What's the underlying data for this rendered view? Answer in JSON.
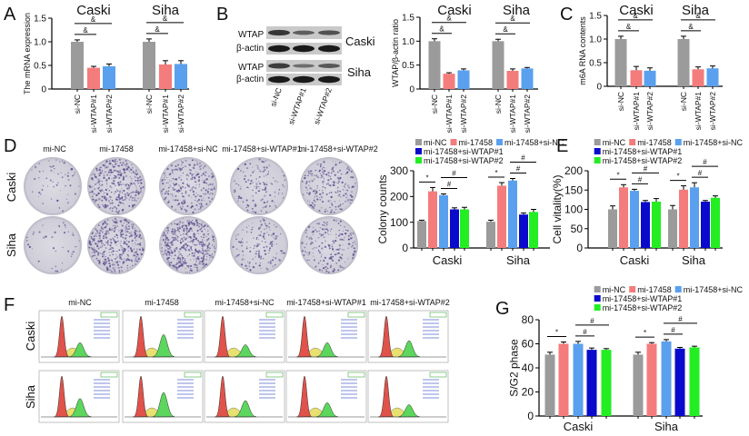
{
  "panel_labels": [
    "A",
    "B",
    "C",
    "D",
    "E",
    "F",
    "G"
  ],
  "blot": {
    "rows": [
      "WTAP",
      "β-actin",
      "WTAP",
      "β-actin"
    ],
    "cell_lines": [
      "Caski",
      "Siha"
    ],
    "lanes": [
      "si-NC",
      "si-WTAP#1",
      "si-WTAP#2"
    ]
  },
  "colony": {
    "columns": [
      "mi-NC",
      "mi-17458",
      "mi-17458+si-NC",
      "mi-17458+si-WTAP#1",
      "mi-17458+si-WTAP#2"
    ],
    "rows": [
      "Caski",
      "Siha"
    ]
  },
  "flow": {
    "columns": [
      "mi-NC",
      "mi-17458",
      "mi-17458+si-NC",
      "mi-17458+si-WTAP#1",
      "mi-17458+si-WTAP#2"
    ],
    "rows": [
      "Caski",
      "Siha"
    ]
  },
  "chart_data": [
    {
      "panel": "A",
      "type": "bar",
      "ylabel": "The mRNA expression",
      "ylim": [
        0,
        1.5
      ],
      "yticks": [
        "0",
        "0.5",
        "1.0",
        "1.5"
      ],
      "ytick_values": [
        0,
        0.5,
        1.0,
        1.5
      ],
      "groups": [
        "Caski",
        "Siha"
      ],
      "series": [
        {
          "name": "si-NC",
          "color": "#9b9b9b",
          "values": [
            1.0,
            1.0
          ],
          "errors": [
            0.04,
            0.06
          ]
        },
        {
          "name": "si-WTAP#1",
          "color": "#f47c7c",
          "values": [
            0.45,
            0.52
          ],
          "errors": [
            0.03,
            0.08
          ]
        },
        {
          "name": "si-WTAP#2",
          "color": "#5aa0ee",
          "values": [
            0.48,
            0.53
          ],
          "errors": [
            0.05,
            0.07
          ]
        }
      ],
      "brackets": [
        {
          "from": 0,
          "to": 1,
          "label": "&"
        },
        {
          "from": 0,
          "to": 2,
          "label": "&"
        }
      ]
    },
    {
      "panel": "B",
      "type": "bar",
      "ylabel": "WTAP/β-actin ratio",
      "ylim": [
        0,
        1.5
      ],
      "yticks": [
        "0",
        "0.5",
        "1.0",
        "1.5"
      ],
      "ytick_values": [
        0,
        0.5,
        1.0,
        1.5
      ],
      "groups": [
        "Caski",
        "Siha"
      ],
      "series": [
        {
          "name": "si-NC",
          "color": "#9b9b9b",
          "values": [
            1.0,
            1.0
          ],
          "errors": [
            0.05,
            0.04
          ]
        },
        {
          "name": "si-WTAP#1",
          "color": "#f47c7c",
          "values": [
            0.32,
            0.38
          ],
          "errors": [
            0.02,
            0.04
          ]
        },
        {
          "name": "si-WTAP#2",
          "color": "#5aa0ee",
          "values": [
            0.39,
            0.43
          ],
          "errors": [
            0.03,
            0.02
          ]
        }
      ],
      "brackets": [
        {
          "from": 0,
          "to": 1,
          "label": "&"
        },
        {
          "from": 0,
          "to": 2,
          "label": "&"
        }
      ]
    },
    {
      "panel": "C",
      "type": "bar",
      "ylabel": "m6A RNA contents",
      "ylim": [
        0,
        1.5
      ],
      "yticks": [
        "0",
        "0.5",
        "1.0",
        "1.5"
      ],
      "ytick_values": [
        0,
        0.5,
        1.0,
        1.5
      ],
      "groups": [
        "Caski",
        "Siha"
      ],
      "series": [
        {
          "name": "si-NC",
          "color": "#9b9b9b",
          "values": [
            1.0,
            1.0
          ],
          "errors": [
            0.06,
            0.06
          ]
        },
        {
          "name": "si-WTAP#1",
          "color": "#f47c7c",
          "values": [
            0.34,
            0.36
          ],
          "errors": [
            0.08,
            0.05
          ]
        },
        {
          "name": "si-WTAP#2",
          "color": "#5aa0ee",
          "values": [
            0.33,
            0.38
          ],
          "errors": [
            0.06,
            0.05
          ]
        }
      ],
      "brackets": [
        {
          "from": 0,
          "to": 1,
          "label": "&"
        },
        {
          "from": 0,
          "to": 2,
          "label": "&"
        }
      ]
    },
    {
      "panel": "D",
      "type": "bar",
      "ylabel": "Colony counts",
      "ylim": [
        0,
        300
      ],
      "yticks": [
        "0",
        "100",
        "200",
        "300"
      ],
      "ytick_values": [
        0,
        100,
        200,
        300
      ],
      "groups": [
        "Caski",
        "Siha"
      ],
      "legend": "top",
      "series": [
        {
          "name": "mi-NC",
          "color": "#9b9b9b",
          "values": [
            105,
            102
          ],
          "errors": [
            3,
            6
          ]
        },
        {
          "name": "mi-17458",
          "color": "#f47c7c",
          "values": [
            220,
            242
          ],
          "errors": [
            15,
            12
          ]
        },
        {
          "name": "mi-17458+si-NC",
          "color": "#5aa0ee",
          "values": [
            205,
            262
          ],
          "errors": [
            5,
            8
          ]
        },
        {
          "name": "mi-17458+si-WTAP#1",
          "color": "#0a0acc",
          "values": [
            150,
            130
          ],
          "errors": [
            6,
            6
          ]
        },
        {
          "name": "mi-17458+si-WTAP#2",
          "color": "#22ee22",
          "values": [
            150,
            140
          ],
          "errors": [
            8,
            10
          ]
        }
      ],
      "brackets": [
        {
          "from": 0,
          "to": 1,
          "label": "*"
        },
        {
          "from": 2,
          "to": 3,
          "label": "#"
        },
        {
          "from": 2,
          "to": 4,
          "label": "#"
        }
      ]
    },
    {
      "panel": "E",
      "type": "bar",
      "ylabel": "Cell vitality(%)",
      "ylim": [
        0,
        200
      ],
      "yticks": [
        "0",
        "50",
        "100",
        "150",
        "200"
      ],
      "ytick_values": [
        0,
        50,
        100,
        150,
        200
      ],
      "groups": [
        "Caski",
        "Siha"
      ],
      "legend": "top",
      "series": [
        {
          "name": "mi-NC",
          "color": "#9b9b9b",
          "values": [
            100,
            100
          ],
          "errors": [
            9,
            10
          ]
        },
        {
          "name": "mi-17458",
          "color": "#f47c7c",
          "values": [
            157,
            151
          ],
          "errors": [
            7,
            10
          ]
        },
        {
          "name": "mi-17458+si-NC",
          "color": "#5aa0ee",
          "values": [
            148,
            157
          ],
          "errors": [
            4,
            12
          ]
        },
        {
          "name": "mi-17458+si-WTAP#1",
          "color": "#0a0acc",
          "values": [
            119,
            120
          ],
          "errors": [
            4,
            3
          ]
        },
        {
          "name": "mi-17458+si-WTAP#2",
          "color": "#22ee22",
          "values": [
            120,
            130
          ],
          "errors": [
            8,
            5
          ]
        }
      ],
      "brackets": [
        {
          "from": 0,
          "to": 1,
          "label": "*"
        },
        {
          "from": 2,
          "to": 3,
          "label": "#"
        },
        {
          "from": 2,
          "to": 4,
          "label": "#"
        }
      ]
    },
    {
      "panel": "G",
      "type": "bar",
      "ylabel": "S/G2 phase",
      "ylim": [
        0,
        80
      ],
      "yticks": [
        "0",
        "20",
        "40",
        "60",
        "80"
      ],
      "ytick_values": [
        0,
        20,
        40,
        60,
        80
      ],
      "groups": [
        "Caski",
        "Siha"
      ],
      "legend": "top",
      "series": [
        {
          "name": "mi-NC",
          "color": "#9b9b9b",
          "values": [
            51,
            51
          ],
          "errors": [
            2,
            2
          ]
        },
        {
          "name": "mi-17458",
          "color": "#f47c7c",
          "values": [
            60,
            60
          ],
          "errors": [
            1.5,
            1
          ]
        },
        {
          "name": "mi-17458+si-NC",
          "color": "#5aa0ee",
          "values": [
            60,
            62
          ],
          "errors": [
            2,
            1.5
          ]
        },
        {
          "name": "mi-17458+si-WTAP#1",
          "color": "#0a0acc",
          "values": [
            55,
            56
          ],
          "errors": [
            1.5,
            1
          ]
        },
        {
          "name": "mi-17458+si-WTAP#2",
          "color": "#22ee22",
          "values": [
            55,
            57
          ],
          "errors": [
            1,
            1
          ]
        }
      ],
      "brackets": [
        {
          "from": 0,
          "to": 1,
          "label": "*"
        },
        {
          "from": 2,
          "to": 3,
          "label": "#"
        },
        {
          "from": 2,
          "to": 4,
          "label": "#"
        }
      ]
    }
  ]
}
